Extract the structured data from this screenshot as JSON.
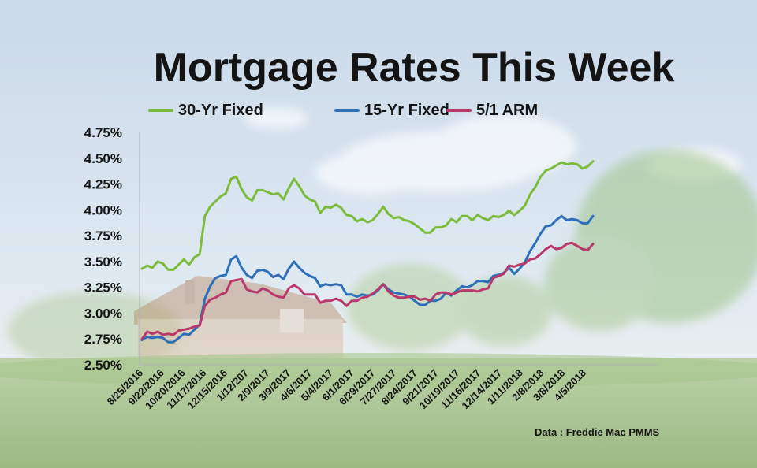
{
  "title": "Mortgage Rates This Week",
  "source_note": "Data : Freddie  Mac PMMS",
  "chart_data": {
    "type": "line",
    "title": "Mortgage Rates This Week",
    "ylim": [
      2.5,
      4.75
    ],
    "yticks": [
      "4.75%",
      "4.50%",
      "4.25%",
      "4.00%",
      "3.75%",
      "3.50%",
      "3.25%",
      "3.00%",
      "2.75%",
      "2.50%"
    ],
    "ytick_values": [
      4.75,
      4.5,
      4.25,
      4.0,
      3.75,
      3.5,
      3.25,
      3.0,
      2.75,
      2.5
    ],
    "xtick_labels": [
      "8/25/2016",
      "9/22/2016",
      "10/20/2016",
      "11/17/2016",
      "12/15/2016",
      "1/12/207",
      "2/9/2017",
      "3/9/2017",
      "4/6/2017",
      "5/4/2017",
      "6/1/2017",
      "6/29/2017",
      "7/27/2017",
      "8/24/2017",
      "9/21/2017",
      "10/19/2017",
      "11/16/2017",
      "12/14/2017",
      "1/11/2018",
      "2/8/2018",
      "3/8/2018",
      "4/5/2018"
    ],
    "legend_position": "top",
    "grid": false,
    "series": [
      {
        "name": "30-Yr Fixed",
        "color": "#7dbb3c",
        "values": [
          3.43,
          3.46,
          3.44,
          3.5,
          3.48,
          3.42,
          3.42,
          3.47,
          3.52,
          3.47,
          3.54,
          3.57,
          3.94,
          4.03,
          4.08,
          4.13,
          4.16,
          4.3,
          4.32,
          4.2,
          4.12,
          4.09,
          4.19,
          4.19,
          4.17,
          4.15,
          4.16,
          4.1,
          4.21,
          4.3,
          4.23,
          4.14,
          4.1,
          4.08,
          3.97,
          4.03,
          4.02,
          4.05,
          4.02,
          3.95,
          3.94,
          3.89,
          3.91,
          3.88,
          3.9,
          3.96,
          4.03,
          3.96,
          3.92,
          3.93,
          3.9,
          3.89,
          3.86,
          3.82,
          3.78,
          3.78,
          3.83,
          3.83,
          3.85,
          3.91,
          3.88,
          3.94,
          3.94,
          3.9,
          3.95,
          3.92,
          3.9,
          3.94,
          3.93,
          3.95,
          3.99,
          3.95,
          3.99,
          4.04,
          4.15,
          4.22,
          4.32,
          4.38,
          4.4,
          4.43,
          4.46,
          4.44,
          4.45,
          4.44,
          4.4,
          4.42,
          4.47
        ]
      },
      {
        "name": "15-Yr Fixed",
        "color": "#2e6fb8",
        "values": [
          2.74,
          2.77,
          2.76,
          2.77,
          2.76,
          2.72,
          2.72,
          2.76,
          2.8,
          2.79,
          2.84,
          2.89,
          3.14,
          3.26,
          3.34,
          3.36,
          3.37,
          3.52,
          3.55,
          3.44,
          3.37,
          3.34,
          3.41,
          3.42,
          3.4,
          3.35,
          3.37,
          3.33,
          3.43,
          3.5,
          3.44,
          3.39,
          3.36,
          3.34,
          3.26,
          3.28,
          3.27,
          3.28,
          3.27,
          3.18,
          3.18,
          3.16,
          3.18,
          3.17,
          3.18,
          3.22,
          3.28,
          3.23,
          3.2,
          3.19,
          3.18,
          3.16,
          3.12,
          3.08,
          3.08,
          3.12,
          3.12,
          3.14,
          3.2,
          3.17,
          3.22,
          3.26,
          3.25,
          3.27,
          3.31,
          3.31,
          3.3,
          3.36,
          3.37,
          3.39,
          3.44,
          3.38,
          3.43,
          3.49,
          3.6,
          3.68,
          3.77,
          3.84,
          3.85,
          3.9,
          3.94,
          3.9,
          3.91,
          3.9,
          3.87,
          3.87,
          3.94
        ]
      },
      {
        "name": "5/1 ARM",
        "color": "#b8396a",
        "values": [
          2.75,
          2.82,
          2.8,
          2.82,
          2.79,
          2.8,
          2.79,
          2.83,
          2.84,
          2.85,
          2.87,
          2.88,
          3.07,
          3.13,
          3.15,
          3.18,
          3.2,
          3.31,
          3.32,
          3.33,
          3.23,
          3.21,
          3.2,
          3.24,
          3.22,
          3.18,
          3.16,
          3.15,
          3.24,
          3.27,
          3.24,
          3.18,
          3.18,
          3.18,
          3.1,
          3.12,
          3.12,
          3.14,
          3.12,
          3.07,
          3.12,
          3.12,
          3.15,
          3.16,
          3.19,
          3.23,
          3.28,
          3.21,
          3.17,
          3.15,
          3.15,
          3.16,
          3.16,
          3.13,
          3.14,
          3.12,
          3.18,
          3.2,
          3.2,
          3.18,
          3.2,
          3.22,
          3.22,
          3.22,
          3.21,
          3.23,
          3.24,
          3.34,
          3.36,
          3.38,
          3.46,
          3.45,
          3.47,
          3.48,
          3.52,
          3.53,
          3.57,
          3.62,
          3.65,
          3.62,
          3.63,
          3.67,
          3.68,
          3.65,
          3.62,
          3.61,
          3.67
        ]
      }
    ]
  }
}
